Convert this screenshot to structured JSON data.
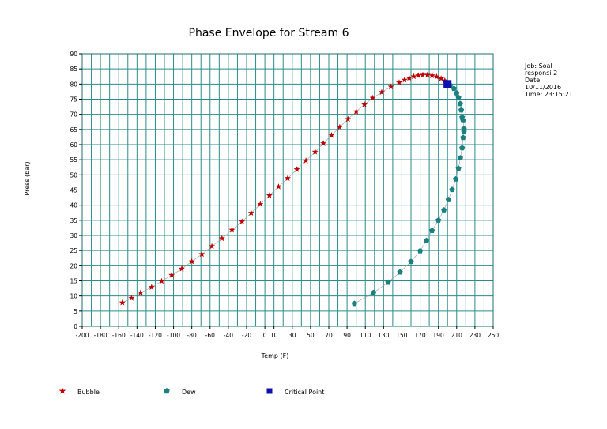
{
  "chart_data": {
    "type": "scatter",
    "title": "Phase Envelope for Stream 6",
    "xlabel": "Temp (F)",
    "ylabel": "Press (bar)",
    "xlim": [
      -200,
      250
    ],
    "ylim": [
      0,
      90
    ],
    "x_ticks": [
      -200,
      -180,
      -160,
      -140,
      -120,
      -100,
      -80,
      -60,
      -40,
      -20,
      0,
      10,
      30,
      50,
      70,
      90,
      110,
      130,
      150,
      170,
      190,
      210,
      230,
      250
    ],
    "y_ticks": [
      0,
      5,
      10,
      15,
      20,
      25,
      30,
      35,
      40,
      45,
      50,
      55,
      60,
      65,
      70,
      75,
      80,
      85,
      90
    ],
    "grid": true,
    "legend_position": "bottom",
    "series": [
      {
        "name": "Bubble",
        "color": "#c00000",
        "marker": "star",
        "points": [
          [
            -156,
            7.8
          ],
          [
            -146,
            9.3
          ],
          [
            -136,
            11.1
          ],
          [
            -124,
            12.9
          ],
          [
            -113,
            14.9
          ],
          [
            -102,
            16.9
          ],
          [
            -91,
            19.0
          ],
          [
            -80,
            21.4
          ],
          [
            -69,
            23.8
          ],
          [
            -58,
            26.4
          ],
          [
            -47,
            29.0
          ],
          [
            -36,
            31.8
          ],
          [
            -25,
            34.6
          ],
          [
            -15,
            37.4
          ],
          [
            -5,
            40.3
          ],
          [
            5,
            43.2
          ],
          [
            15,
            46.1
          ],
          [
            25,
            48.9
          ],
          [
            35,
            51.8
          ],
          [
            45,
            54.7
          ],
          [
            55,
            57.6
          ],
          [
            64,
            60.4
          ],
          [
            73,
            63.1
          ],
          [
            82,
            65.8
          ],
          [
            91,
            68.4
          ],
          [
            100,
            70.9
          ],
          [
            109,
            73.2
          ],
          [
            118,
            75.4
          ],
          [
            128,
            77.3
          ],
          [
            138,
            79.1
          ],
          [
            147,
            80.5
          ],
          [
            153,
            81.4
          ],
          [
            158,
            82.0
          ],
          [
            163,
            82.5
          ],
          [
            168,
            82.8
          ],
          [
            173,
            83.0
          ],
          [
            178,
            83.0
          ],
          [
            183,
            82.8
          ],
          [
            188,
            82.4
          ],
          [
            193,
            81.8
          ],
          [
            197,
            81.1
          ]
        ]
      },
      {
        "name": "Dew",
        "color": "#1a8080",
        "marker": "pentagon",
        "points": [
          [
            203,
            79.6
          ],
          [
            207,
            78.5
          ],
          [
            210,
            77.0
          ],
          [
            212,
            75.5
          ],
          [
            214,
            73.5
          ],
          [
            215,
            71.4
          ],
          [
            216,
            69.0
          ],
          [
            217,
            67.9
          ],
          [
            218,
            65.2
          ],
          [
            218,
            64.2
          ],
          [
            217,
            62.3
          ],
          [
            216,
            58.9
          ],
          [
            214,
            55.6
          ],
          [
            212,
            52.1
          ],
          [
            209,
            48.6
          ],
          [
            205,
            45.1
          ],
          [
            201,
            41.8
          ],
          [
            196,
            38.4
          ],
          [
            190,
            35.0
          ],
          [
            183,
            31.6
          ],
          [
            177,
            28.3
          ],
          [
            170,
            24.9
          ],
          [
            160,
            21.4
          ],
          [
            148,
            17.9
          ],
          [
            135,
            14.5
          ],
          [
            119,
            11.1
          ],
          [
            98,
            7.5
          ]
        ]
      },
      {
        "name": "Critical Point",
        "color": "#1010b0",
        "marker": "square",
        "points": [
          [
            200,
            80.0
          ]
        ]
      }
    ]
  },
  "job_info": {
    "text": "Job:  Soal\nresponsi 2\nDate:\n10/11/2016\nTime: 23:15:21"
  },
  "legend": {
    "bubble": "Bubble",
    "dew": "Dew",
    "critical": "Critical Point"
  }
}
